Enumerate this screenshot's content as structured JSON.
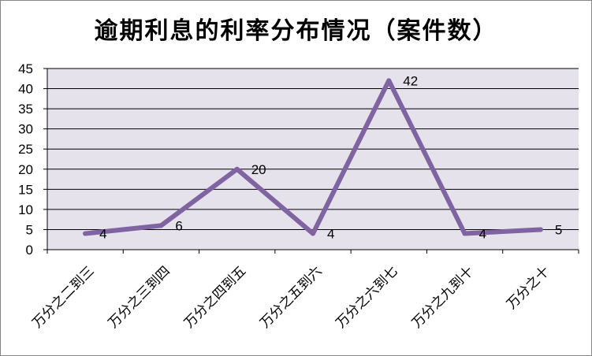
{
  "chart_data": {
    "type": "line",
    "title": "逾期利息的利率分布情况（案件数）",
    "xlabel": "",
    "ylabel": "",
    "categories": [
      "万分之二到三",
      "万分之三到四",
      "万分之四到五",
      "万分之五到六",
      "万分之六到七",
      "万分之九到十",
      "万分之十"
    ],
    "series": [
      {
        "values": [
          4,
          6,
          20,
          4,
          42,
          4,
          5
        ]
      }
    ],
    "ylim": [
      0,
      45
    ],
    "yticks": [
      0,
      5,
      10,
      15,
      20,
      25,
      30,
      35,
      40,
      45
    ],
    "grid": true,
    "legend": "none",
    "colors": {
      "line": "#8064a2",
      "plot_bg": "#e6e2ec",
      "grid": "#000000"
    }
  }
}
